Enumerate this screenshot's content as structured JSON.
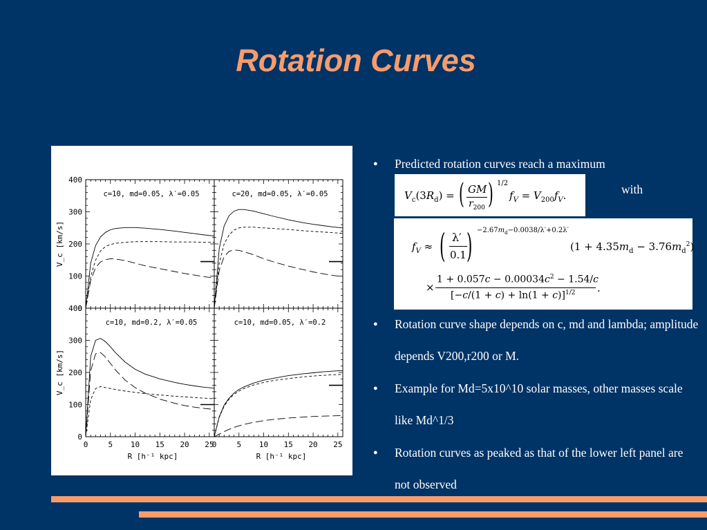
{
  "title": "Rotation Curves",
  "bullets": [
    "Predicted rotation curves reach a maximum",
    "Rotation curve shape depends on  c, md and lambda; amplitude depends V200,r200 or M.",
    "Example for Md=5x10^10 solar masses, other masses scale like Md^1/3",
    "Rotation curves as peaked as that of the lower left panel are not observed"
  ],
  "with_label": "with",
  "colors": {
    "background": "#003366",
    "accent": "#F79C6C",
    "text": "#ffffff"
  },
  "chart_data": [
    {
      "type": "line",
      "panel": "top-left",
      "title": "c=10, m_d=0.05, λ′=0.05",
      "xlabel": "R [h⁻¹ kpc]",
      "ylabel": "V_c [km/s]",
      "xlim": [
        0,
        26
      ],
      "ylim": [
        0,
        400
      ],
      "x": [
        0,
        1,
        2,
        3,
        4,
        5,
        6,
        8,
        10,
        12,
        15,
        18,
        20,
        22,
        24,
        26
      ],
      "series": [
        {
          "style": "solid",
          "values": [
            0,
            140,
            195,
            222,
            236,
            244,
            248,
            251,
            251,
            249,
            245,
            240,
            236,
            232,
            228,
            225
          ]
        },
        {
          "style": "short-dash",
          "values": [
            0,
            98,
            150,
            178,
            192,
            198,
            202,
            205,
            207,
            207,
            207,
            206,
            206,
            206,
            205,
            205
          ]
        },
        {
          "style": "long-dash",
          "values": [
            0,
            86,
            126,
            144,
            151,
            154,
            153,
            148,
            140,
            132,
            123,
            114,
            108,
            103,
            98,
            94
          ]
        }
      ]
    },
    {
      "type": "line",
      "panel": "top-right",
      "title": "c=20, m_d=0.05, λ′=0.05",
      "xlabel": "R [h⁻¹ kpc]",
      "ylabel": "",
      "xlim": [
        0,
        26
      ],
      "ylim": [
        0,
        400
      ],
      "x": [
        0,
        1,
        2,
        3,
        4,
        5,
        6,
        8,
        10,
        12,
        15,
        18,
        20,
        22,
        24,
        26
      ],
      "series": [
        {
          "style": "solid",
          "values": [
            0,
            185,
            256,
            288,
            302,
            307,
            307,
            302,
            294,
            286,
            275,
            266,
            261,
            257,
            253,
            250
          ]
        },
        {
          "style": "short-dash",
          "values": [
            0,
            140,
            200,
            228,
            243,
            250,
            252,
            252,
            250,
            248,
            245,
            241,
            239,
            237,
            235,
            233
          ]
        },
        {
          "style": "long-dash",
          "values": [
            0,
            118,
            160,
            177,
            181,
            180,
            176,
            166,
            154,
            144,
            131,
            120,
            113,
            107,
            102,
            98
          ]
        }
      ]
    },
    {
      "type": "line",
      "panel": "bottom-left",
      "title": "c=10, m_d=0.2, λ′=0.05",
      "xlabel": "R [h⁻¹ kpc]",
      "ylabel": "V_c [km/s]",
      "xlim": [
        0,
        26
      ],
      "ylim": [
        0,
        400
      ],
      "x": [
        0,
        1,
        2,
        3,
        4,
        5,
        6,
        8,
        10,
        12,
        15,
        18,
        20,
        22,
        24,
        26
      ],
      "series": [
        {
          "style": "solid",
          "values": [
            0,
            250,
            300,
            306,
            296,
            280,
            262,
            232,
            210,
            195,
            180,
            169,
            163,
            158,
            154,
            151
          ]
        },
        {
          "style": "long-dash",
          "values": [
            0,
            205,
            258,
            262,
            248,
            228,
            208,
            176,
            153,
            136,
            117,
            104,
            97,
            92,
            88,
            85
          ]
        },
        {
          "style": "short-dash",
          "values": [
            0,
            115,
            150,
            156,
            153,
            150,
            147,
            142,
            138,
            134,
            130,
            126,
            124,
            122,
            120,
            118
          ]
        }
      ]
    },
    {
      "type": "line",
      "panel": "bottom-right",
      "title": "c=10, m_d=0.05, λ′=0.2",
      "xlabel": "R [h⁻¹ kpc]",
      "ylabel": "",
      "xlim": [
        0,
        26
      ],
      "ylim": [
        0,
        400
      ],
      "x": [
        0,
        1,
        2,
        3,
        4,
        5,
        6,
        8,
        10,
        12,
        15,
        18,
        20,
        22,
        24,
        26
      ],
      "series": [
        {
          "style": "solid",
          "values": [
            0,
            62,
            98,
            120,
            136,
            147,
            155,
            167,
            176,
            182,
            190,
            196,
            199,
            202,
            204,
            206
          ]
        },
        {
          "style": "short-dash",
          "values": [
            0,
            60,
            95,
            117,
            132,
            142,
            150,
            161,
            169,
            175,
            181,
            186,
            189,
            191,
            193,
            194
          ]
        },
        {
          "style": "long-dash",
          "values": [
            0,
            8,
            16,
            23,
            29,
            34,
            38,
            45,
            50,
            54,
            58,
            61,
            63,
            64,
            65,
            66
          ]
        }
      ]
    }
  ]
}
